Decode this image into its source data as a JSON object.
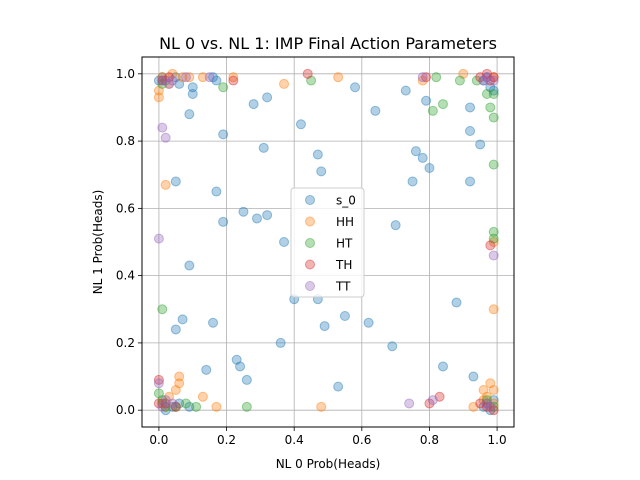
{
  "chart_data": {
    "type": "scatter",
    "title": "NL 0 vs. NL 1: IMP Final Action Parameters",
    "xlabel": "NL 0 Prob(Heads)",
    "ylabel": "NL 1 Prob(Heads)",
    "xlim": [
      -0.05,
      1.05
    ],
    "ylim": [
      -0.05,
      1.05
    ],
    "xticks": [
      "0.0",
      "0.2",
      "0.4",
      "0.6",
      "0.8",
      "1.0"
    ],
    "yticks": [
      "0.0",
      "0.2",
      "0.4",
      "0.6",
      "0.8",
      "1.0"
    ],
    "grid": true,
    "legend_position": "center",
    "marker_alpha": 0.35,
    "series": [
      {
        "name": "s_0",
        "color": "#1f77b4",
        "points": [
          [
            0.05,
            0.68
          ],
          [
            0.17,
            0.65
          ],
          [
            0.19,
            0.56
          ],
          [
            0.25,
            0.59
          ],
          [
            0.29,
            0.57
          ],
          [
            0.32,
            0.58
          ],
          [
            0.31,
            0.78
          ],
          [
            0.19,
            0.82
          ],
          [
            0.28,
            0.91
          ],
          [
            0.32,
            0.93
          ],
          [
            0.42,
            0.85
          ],
          [
            0.47,
            0.76
          ],
          [
            0.48,
            0.71
          ],
          [
            0.58,
            0.96
          ],
          [
            0.64,
            0.89
          ],
          [
            0.73,
            0.95
          ],
          [
            0.76,
            0.77
          ],
          [
            0.78,
            0.75
          ],
          [
            0.8,
            0.72
          ],
          [
            0.75,
            0.68
          ],
          [
            0.7,
            0.55
          ],
          [
            0.79,
            0.92
          ],
          [
            0.92,
            0.9
          ],
          [
            0.92,
            0.83
          ],
          [
            0.95,
            0.79
          ],
          [
            0.92,
            0.68
          ],
          [
            0.37,
            0.5
          ],
          [
            0.09,
            0.43
          ],
          [
            0.4,
            0.33
          ],
          [
            0.47,
            0.33
          ],
          [
            0.07,
            0.27
          ],
          [
            0.05,
            0.24
          ],
          [
            0.16,
            0.26
          ],
          [
            0.36,
            0.2
          ],
          [
            0.49,
            0.25
          ],
          [
            0.55,
            0.28
          ],
          [
            0.62,
            0.26
          ],
          [
            0.69,
            0.19
          ],
          [
            0.88,
            0.32
          ],
          [
            0.84,
            0.13
          ],
          [
            0.23,
            0.15
          ],
          [
            0.24,
            0.13
          ],
          [
            0.14,
            0.12
          ],
          [
            0.26,
            0.09
          ],
          [
            0.53,
            0.07
          ],
          [
            0.93,
            0.1
          ],
          [
            0.09,
            0.88
          ],
          [
            0.1,
            0.94
          ],
          [
            0.1,
            0.96
          ],
          [
            0.0,
            0.98
          ],
          [
            0.01,
            0.99
          ],
          [
            0.02,
            0.98
          ],
          [
            0.05,
            0.99
          ],
          [
            0.06,
            0.97
          ],
          [
            0.16,
            0.99
          ],
          [
            0.17,
            0.98
          ],
          [
            0.96,
            0.98
          ],
          [
            0.97,
            0.99
          ],
          [
            0.98,
            0.96
          ],
          [
            0.99,
            0.95
          ],
          [
            0.01,
            0.02
          ],
          [
            0.02,
            0.0
          ],
          [
            0.04,
            0.01
          ],
          [
            0.06,
            0.02
          ],
          [
            0.09,
            0.01
          ],
          [
            0.96,
            0.01
          ],
          [
            0.97,
            0.02
          ],
          [
            0.98,
            0.0
          ],
          [
            0.99,
            0.03
          ]
        ]
      },
      {
        "name": "HH",
        "color": "#ff7f0e",
        "points": [
          [
            0.0,
            0.93
          ],
          [
            0.0,
            0.95
          ],
          [
            0.01,
            0.99
          ],
          [
            0.03,
            0.97
          ],
          [
            0.04,
            1.0
          ],
          [
            0.07,
            0.99
          ],
          [
            0.09,
            0.99
          ],
          [
            0.13,
            0.99
          ],
          [
            0.22,
            0.99
          ],
          [
            0.37,
            0.97
          ],
          [
            0.53,
            0.99
          ],
          [
            0.78,
            0.98
          ],
          [
            0.9,
            1.0
          ],
          [
            0.99,
            0.99
          ],
          [
            0.99,
            0.5
          ],
          [
            0.99,
            0.3
          ],
          [
            0.02,
            0.67
          ],
          [
            0.06,
            0.1
          ],
          [
            0.06,
            0.08
          ],
          [
            0.05,
            0.06
          ],
          [
            0.03,
            0.04
          ],
          [
            0.01,
            0.02
          ],
          [
            0.02,
            0.01
          ],
          [
            0.13,
            0.04
          ],
          [
            0.17,
            0.01
          ],
          [
            0.48,
            0.01
          ],
          [
            0.93,
            0.01
          ],
          [
            0.96,
            0.06
          ],
          [
            0.97,
            0.04
          ],
          [
            0.98,
            0.08
          ],
          [
            0.99,
            0.06
          ],
          [
            0.99,
            0.02
          ],
          [
            0.98,
            0.01
          ],
          [
            0.96,
            0.03
          ]
        ]
      },
      {
        "name": "HT",
        "color": "#2ca02c",
        "points": [
          [
            0.01,
            0.97
          ],
          [
            0.19,
            0.96
          ],
          [
            0.45,
            0.98
          ],
          [
            0.81,
            0.89
          ],
          [
            0.82,
            0.99
          ],
          [
            0.84,
            0.91
          ],
          [
            0.89,
            0.98
          ],
          [
            0.94,
            0.98
          ],
          [
            0.97,
            0.94
          ],
          [
            0.98,
            0.9
          ],
          [
            0.99,
            0.87
          ],
          [
            0.99,
            0.94
          ],
          [
            0.99,
            0.73
          ],
          [
            0.99,
            0.53
          ],
          [
            0.99,
            0.51
          ],
          [
            0.01,
            0.3
          ],
          [
            0.0,
            0.05
          ],
          [
            0.01,
            0.03
          ],
          [
            0.02,
            0.01
          ],
          [
            0.05,
            0.01
          ],
          [
            0.08,
            0.02
          ],
          [
            0.11,
            0.01
          ],
          [
            0.26,
            0.01
          ],
          [
            0.97,
            0.03
          ],
          [
            0.99,
            0.01
          ]
        ]
      },
      {
        "name": "TH",
        "color": "#d62728",
        "points": [
          [
            0.01,
            0.98
          ],
          [
            0.03,
            0.99
          ],
          [
            0.22,
            0.98
          ],
          [
            0.44,
            1.0
          ],
          [
            0.79,
            0.99
          ],
          [
            0.95,
            0.99
          ],
          [
            0.97,
            1.0
          ],
          [
            0.98,
            0.98
          ],
          [
            0.99,
            0.99
          ],
          [
            0.98,
            0.49
          ],
          [
            0.0,
            0.09
          ],
          [
            0.0,
            0.02
          ],
          [
            0.02,
            0.02
          ],
          [
            0.05,
            0.01
          ],
          [
            0.8,
            0.02
          ],
          [
            0.83,
            0.04
          ],
          [
            0.95,
            0.02
          ],
          [
            0.97,
            0.01
          ],
          [
            0.99,
            0.0
          ]
        ]
      },
      {
        "name": "TT",
        "color": "#9467bd",
        "points": [
          [
            0.0,
            0.51
          ],
          [
            0.01,
            0.84
          ],
          [
            0.02,
            0.81
          ],
          [
            0.01,
            0.98
          ],
          [
            0.03,
            0.97
          ],
          [
            0.04,
            0.98
          ],
          [
            0.08,
            0.99
          ],
          [
            0.15,
            0.99
          ],
          [
            0.78,
            0.99
          ],
          [
            0.96,
            0.98
          ],
          [
            0.97,
            0.99
          ],
          [
            0.99,
            0.98
          ],
          [
            0.99,
            0.46
          ],
          [
            0.74,
            0.02
          ],
          [
            0.81,
            0.03
          ],
          [
            0.0,
            0.08
          ],
          [
            0.01,
            0.01
          ],
          [
            0.02,
            0.03
          ],
          [
            0.04,
            0.02
          ],
          [
            0.97,
            0.02
          ],
          [
            0.98,
            0.01
          ]
        ]
      }
    ]
  }
}
